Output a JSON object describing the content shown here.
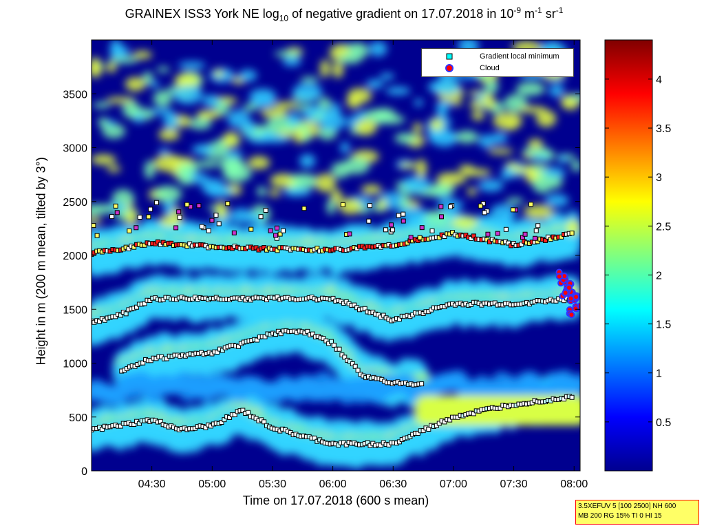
{
  "chart_data": {
    "type": "heatmap",
    "title": {
      "prefix": "GRAINEX ISS3 York NE log",
      "log_base": "10",
      "middle": " of negative gradient on 17.07.2018 in 10",
      "exp1": "-9",
      "unit1": " m",
      "exp2": "-1",
      "unit2": " sr",
      "exp3": "-1"
    },
    "xlabel": "Time on 17.07.2018 (600 s mean)",
    "ylabel": "Height in m (200 m mean, tilted by 3°)",
    "x_ticks": [
      "04:30",
      "05:00",
      "05:30",
      "06:00",
      "06:30",
      "07:00",
      "07:30",
      "08:00"
    ],
    "x_tick_hours": [
      4.5,
      5.0,
      5.5,
      6.0,
      6.5,
      7.0,
      7.5,
      8.0
    ],
    "xlim_hours": [
      4.0,
      8.05
    ],
    "y_ticks": [
      "0",
      "500",
      "1000",
      "1500",
      "2000",
      "2500",
      "3000",
      "3500"
    ],
    "y_tick_values": [
      0,
      500,
      1000,
      1500,
      2000,
      2500,
      3000,
      3500
    ],
    "ylim": [
      0,
      4000
    ],
    "colorbar": {
      "ticks": [
        "0.5",
        "1",
        "1.5",
        "2",
        "2.5",
        "3",
        "3.5",
        "4"
      ],
      "tick_values": [
        0.5,
        1,
        1.5,
        2,
        2.5,
        3,
        3.5,
        4
      ],
      "range": [
        0,
        4.4
      ],
      "colormap": "jet"
    },
    "legend": {
      "placement": "top-right",
      "entries": [
        "Gradient local minimum",
        "Cloud"
      ]
    },
    "layers_approx": [
      {
        "name": "lower boundary layer",
        "x": [
          4.0,
          4.5,
          4.75,
          5.0,
          5.25,
          5.5,
          5.75,
          6.0,
          6.5,
          7.0,
          7.5,
          8.0
        ],
        "y": [
          380,
          470,
          380,
          420,
          560,
          400,
          320,
          250,
          250,
          500,
          620,
          690
        ]
      },
      {
        "name": "residual layer",
        "x": [
          4.25,
          4.5,
          5.0,
          5.25,
          5.5,
          5.75,
          6.0,
          6.25,
          6.5,
          6.75
        ],
        "y": [
          940,
          1040,
          1100,
          1180,
          1280,
          1300,
          1180,
          880,
          820,
          800
        ]
      },
      {
        "name": "mid layer",
        "x": [
          4.0,
          4.25,
          4.5,
          5.0,
          6.0,
          6.25,
          6.5,
          7.0,
          7.5,
          8.0
        ],
        "y": [
          1380,
          1450,
          1600,
          1600,
          1600,
          1500,
          1400,
          1550,
          1550,
          1600
        ]
      },
      {
        "name": "upper layer",
        "x": [
          4.0,
          4.25,
          4.5,
          5.0,
          5.5,
          6.0,
          6.5,
          7.0,
          7.5,
          8.0
        ],
        "y": [
          2020,
          2060,
          2120,
          2080,
          2060,
          2050,
          2100,
          2200,
          2100,
          2200
        ]
      }
    ],
    "cloud_points_approx": {
      "x": [
        7.9,
        7.95,
        8.0,
        8.02,
        7.98,
        7.93
      ],
      "y": [
        1800,
        1700,
        1600,
        1550,
        1500,
        1650
      ]
    }
  },
  "settings_box": {
    "line1": "3.5XEFUV 5 [100 2500] NH 600",
    "line2": "MB 200 RG 15% TI 0 HI 15"
  }
}
